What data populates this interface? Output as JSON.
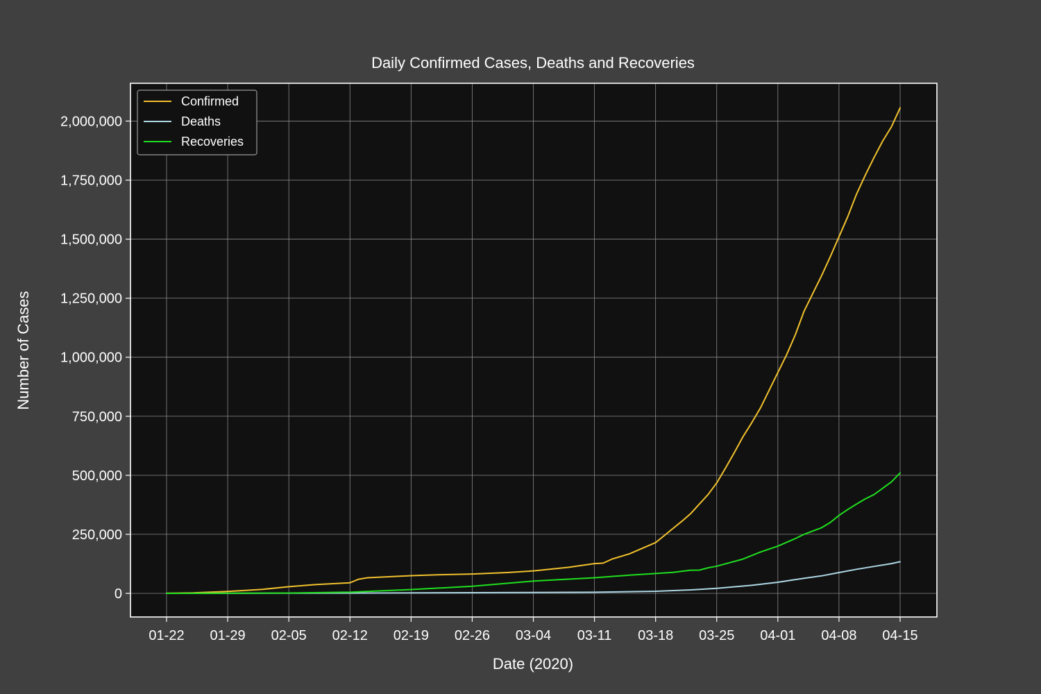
{
  "colors": {
    "figure_bg": "#404040",
    "plot_bg": "#111111",
    "grid": "#8a8a8a",
    "text": "#ffffff"
  },
  "chart_data": {
    "type": "line",
    "title": "Daily Confirmed Cases, Deaths and Recoveries",
    "xlabel": "Date (2020)",
    "ylabel": "Number of Cases",
    "x_start": "2020-01-22",
    "x_end": "2020-04-15",
    "xtick_dates": [
      "2020-01-22",
      "2020-01-29",
      "2020-02-05",
      "2020-02-12",
      "2020-02-19",
      "2020-02-26",
      "2020-03-04",
      "2020-03-11",
      "2020-03-18",
      "2020-03-25",
      "2020-04-01",
      "2020-04-08",
      "2020-04-15"
    ],
    "xtick_labels": [
      "01-22",
      "01-29",
      "02-05",
      "02-12",
      "02-19",
      "02-26",
      "03-04",
      "03-11",
      "03-18",
      "03-25",
      "04-01",
      "04-08",
      "04-15"
    ],
    "yticks": [
      0,
      250000,
      500000,
      750000,
      1000000,
      1250000,
      1500000,
      1750000,
      2000000
    ],
    "ytick_labels": [
      "0",
      "250,000",
      "500,000",
      "750,000",
      "1,000,000",
      "1,250,000",
      "1,500,000",
      "1,750,000",
      "2,000,000"
    ],
    "ylim": [
      -100000,
      2160000
    ],
    "grid": true,
    "legend": "top-left",
    "series": [
      {
        "name": "Confirmed",
        "color": "#f2c22d",
        "x": [
          "2020-01-22",
          "2020-01-25",
          "2020-01-29",
          "2020-02-02",
          "2020-02-05",
          "2020-02-08",
          "2020-02-12",
          "2020-02-13",
          "2020-02-14",
          "2020-02-19",
          "2020-02-22",
          "2020-02-26",
          "2020-03-01",
          "2020-03-04",
          "2020-03-08",
          "2020-03-11",
          "2020-03-12",
          "2020-03-13",
          "2020-03-15",
          "2020-03-18",
          "2020-03-19",
          "2020-03-20",
          "2020-03-21",
          "2020-03-22",
          "2020-03-23",
          "2020-03-24",
          "2020-03-25",
          "2020-03-26",
          "2020-03-27",
          "2020-03-28",
          "2020-03-29",
          "2020-03-30",
          "2020-03-31",
          "2020-04-01",
          "2020-04-02",
          "2020-04-03",
          "2020-04-04",
          "2020-04-05",
          "2020-04-06",
          "2020-04-07",
          "2020-04-08",
          "2020-04-09",
          "2020-04-10",
          "2020-04-11",
          "2020-04-12",
          "2020-04-13",
          "2020-04-14",
          "2020-04-15"
        ],
        "values": [
          555,
          2000,
          7800,
          17000,
          28000,
          37000,
          45000,
          60000,
          66000,
          75000,
          78500,
          82000,
          88000,
          95000,
          110000,
          126000,
          128000,
          145000,
          167000,
          215000,
          245000,
          275000,
          305000,
          337000,
          378000,
          418000,
          468000,
          530000,
          595000,
          663000,
          722000,
          785000,
          860000,
          935000,
          1010000,
          1095000,
          1195000,
          1270000,
          1345000,
          1425000,
          1510000,
          1595000,
          1690000,
          1770000,
          1845000,
          1915000,
          1975000,
          2056000
        ]
      },
      {
        "name": "Deaths",
        "color": "#add8e6",
        "x": [
          "2020-01-22",
          "2020-02-12",
          "2020-02-26",
          "2020-03-11",
          "2020-03-18",
          "2020-03-22",
          "2020-03-25",
          "2020-03-29",
          "2020-04-01",
          "2020-04-04",
          "2020-04-06",
          "2020-04-08",
          "2020-04-10",
          "2020-04-12",
          "2020-04-14",
          "2020-04-15"
        ],
        "values": [
          17,
          1100,
          2800,
          4600,
          8700,
          14600,
          21200,
          34000,
          47000,
          64000,
          74000,
          88000,
          102000,
          114000,
          126000,
          134000
        ]
      },
      {
        "name": "Recoveries",
        "color": "#1fe01f",
        "x": [
          "2020-01-22",
          "2020-02-05",
          "2020-02-12",
          "2020-02-19",
          "2020-02-26",
          "2020-03-04",
          "2020-03-11",
          "2020-03-15",
          "2020-03-18",
          "2020-03-20",
          "2020-03-22",
          "2020-03-23",
          "2020-03-24",
          "2020-03-25",
          "2020-03-28",
          "2020-03-30",
          "2020-04-01",
          "2020-04-03",
          "2020-04-04",
          "2020-04-06",
          "2020-04-07",
          "2020-04-08",
          "2020-04-09",
          "2020-04-10",
          "2020-04-11",
          "2020-04-12",
          "2020-04-13",
          "2020-04-14",
          "2020-04-15"
        ],
        "values": [
          28,
          1500,
          5000,
          16000,
          30000,
          52000,
          66000,
          77000,
          84000,
          89000,
          98000,
          98500,
          108000,
          115000,
          145000,
          175000,
          200000,
          232000,
          250000,
          278000,
          300000,
          330000,
          355000,
          378000,
          400000,
          418000,
          445000,
          472000,
          510000
        ]
      }
    ]
  }
}
